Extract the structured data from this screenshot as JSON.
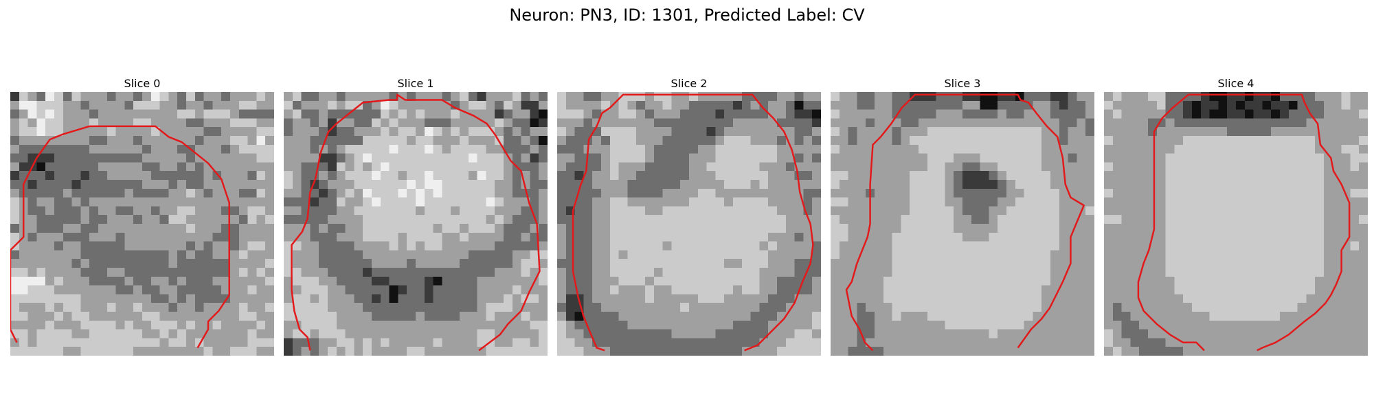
{
  "figure": {
    "title": "Neuron: PN3, ID: 1301, Predicted Label: CV"
  },
  "colors": {
    "contour": "#e31a1c"
  },
  "slices": [
    {
      "title": "Slice 0",
      "pixels": [
        "ADCBEDBDCCCBCCBCEDCBDBCCBCCCDC",
        "CEEDDDCCBCCCCBDDDCCBCCBCCCDDCC",
        "BCEDEDCCCBCCCCCCCCCDDCDDDCBBBB",
        "CDCEDDCCCDCCCCDDCCCCBBCCCDDDCC",
        "CDDEDDCCCCCDCCCCDCCCCCBBCCCCDD",
        "BCCCCCCCCBBCCCBCCCCCCBCCCDDCEC",
        "CBBBBBBBBCCCCCCBCCCBBCCCBCDDDD",
        "BBAAABBBBBBBBBBCCCCCBCCCCCCCDD",
        "CAA@BBBBBBCCCCCBBCCBCBCCCCCCCC",
        "ABBBABBBABBCCCCCBBBBBBCBCCCBDC",
        "BBABBBBABBBBBBBCCCBCBBCCCCCCCC",
        "CBBBBBCBBBBBBCBBBBCCDCBCCCBBDC",
        "DCBCCBBCBCCCCCCCCCCCCCCCCCCCCC",
        "DCBBCBBBCBCCBBCCBCCDDCCCBBCDDC",
        "DCCBBBBBCBBCCCBCCBDDCCCCCCBDCD",
        "BCCBBBCCBBCCCCCCCCCCDCCCBBCCCC",
        "DCBCCCBBBCCCBCCCCCCCCCCBBBCCCC",
        "DCCCCBCCBBBBBCCCCCCCBCBCCBCDDC",
        "BCCCCCCCBBBBBBBBBBCBCBBCCCDCCC",
        "CCCCCCCBCBBBBBBBBBCBBBBBBCCCCD",
        "DDCDCCCCBBBCCBBBBBBBBBBBBCDCDC",
        "EEEECDCCCBBBBCBBCCBCBBBCCCCCCD",
        "EEDDDCCCCCCCBBCBBCCBBBBBCCCDCC",
        "DDDDDDDDCCCCCCCCBBCBCBBBBCCCCC",
        "DCCCDCDDCCCDCCDCCCBCCBCCCCDCCD",
        "DDCCCDCDDCCCCCCDDCCCCCCCCCDDCC",
        "CCCCDCCCDDDDCDCCDDDCDCCDCCCCDC",
        "DDCDDDDCCDDDDDDCCDCDCCCCCCCDCC",
        "CDCDDDDDDDDDDDDDDCDDCDCCCCCDDD",
        "DDDDDDCCDDDDDDCCCCCCCCDCCDDDCC"
      ],
      "contour": [
        [
          0.025,
          0.95
        ],
        [
          0.0,
          0.9
        ],
        [
          0.0,
          0.6
        ],
        [
          0.05,
          0.55
        ],
        [
          0.05,
          0.35
        ],
        [
          0.1,
          0.25
        ],
        [
          0.15,
          0.18
        ],
        [
          0.2,
          0.16
        ],
        [
          0.3,
          0.13
        ],
        [
          0.55,
          0.13
        ],
        [
          0.6,
          0.17
        ],
        [
          0.65,
          0.19
        ],
        [
          0.7,
          0.23
        ],
        [
          0.75,
          0.27
        ],
        [
          0.8,
          0.33
        ],
        [
          0.83,
          0.42
        ],
        [
          0.83,
          0.77
        ],
        [
          0.79,
          0.83
        ],
        [
          0.75,
          0.87
        ],
        [
          0.75,
          0.9
        ],
        [
          0.71,
          0.97
        ]
      ]
    },
    {
      "title": "Slice 1",
      "pixels": [
        "CDBBCCBCCCCCBCBCCCBCDBACCCDBCB",
        "DBCCCDCDDBCEDCCCCCCBCDDCBDCAAC",
        "CDBBCBBBBBBDCDCDCCCDCCCCABCCA@",
        "BCCBCACCBBDCDCCCBBBCCCCCDCBB@A",
        "BCCCBABBCCCDCDDCEDCDCDDDCBCBCC",
        "CCCBBBBBBDDDDDCDDCCCDCCCDBBCB@",
        "CCCBCBCDDDDDEDDDEDCDDDDCCBBBCB",
        "CCCCAABCDEDDDDDDDDDDDEDDDCBCAB",
        "CCBBBADCDCDEDDDDDDDDDDDDDCBBBC",
        "DCBBCBCDDDEDDCDDEDDDDCEDDCBCBC",
        "DCBABCCCDDDDDDEDEEDDDDDDCCBCBB",
        "CCBBABCDCEDDDEDEDEDDDDDDCCBBBC",
        "BBBABBDCCDEDDDDEDDDDDDDEDCCCBC",
        "CCBBBBCCDDDDDDDCDDDCDDDDCCCBBC",
        "BBBBBCCCCDDDDDDDDDDDDDDCDCBBBC",
        "CCCBCBBCCDDDDDDDDCDDCDDDCBBBCB",
        "CCCBBBCCCDDDDCDDDDCCDCCCCBBCBB",
        "DDCCBBBBCCCCDCDCDDCCCCCCBBBBBC",
        "DCCCBBBBBCCCCCCCCCCCCBBBBBCCDD",
        "DCCCBBBBBBCCCCBCCCCCBBBBBBCDDC",
        "DDCCCBBBBABBBBBBBBBBBBBBCCCDCD",
        "CDDDCCBBBBAABBBBA@BBBBCCCCCCCD",
        "CCDDDCCBBBBB@ABBABBBBBCCCCDCCC",
        "CDDCDCCCBBAB@BBBABBBBBCCCDCDDC",
        "DDDDDCCCCBBBBBBBBBBBBBCDDDCCCC",
        "DDDDDDCCCCBBBBBCBBBBCCCDCCCDCC",
        "CCDDDDCCCCCCCCCCCCCCCCCCCCCCDD",
        "CDDCDDDCCCCCCCCCCCCCCCDDCCCCCD",
        "ABBBCCDDCDCDCCCCCDCCCCDDCCDDCD",
        "ABCBCDCDCDCCCCDDCCCCCCCDDDDDDD"
      ],
      "contour": [
        [
          0.1,
          0.98
        ],
        [
          0.09,
          0.93
        ],
        [
          0.06,
          0.9
        ],
        [
          0.04,
          0.83
        ],
        [
          0.03,
          0.75
        ],
        [
          0.03,
          0.58
        ],
        [
          0.07,
          0.53
        ],
        [
          0.09,
          0.48
        ],
        [
          0.1,
          0.38
        ],
        [
          0.12,
          0.33
        ],
        [
          0.14,
          0.23
        ],
        [
          0.17,
          0.15
        ],
        [
          0.2,
          0.12
        ],
        [
          0.25,
          0.08
        ],
        [
          0.3,
          0.04
        ],
        [
          0.4,
          0.03
        ],
        [
          0.43,
          0.03
        ],
        [
          0.43,
          0.01
        ],
        [
          0.46,
          0.03
        ],
        [
          0.6,
          0.03
        ],
        [
          0.65,
          0.06
        ],
        [
          0.72,
          0.09
        ],
        [
          0.77,
          0.12
        ],
        [
          0.8,
          0.16
        ],
        [
          0.83,
          0.21
        ],
        [
          0.86,
          0.26
        ],
        [
          0.9,
          0.3
        ],
        [
          0.93,
          0.42
        ],
        [
          0.96,
          0.5
        ],
        [
          0.97,
          0.68
        ],
        [
          0.93,
          0.76
        ],
        [
          0.9,
          0.83
        ],
        [
          0.85,
          0.88
        ],
        [
          0.82,
          0.92
        ],
        [
          0.74,
          0.98
        ]
      ]
    },
    {
      "title": "Slice 2",
      "pixels": [
        "DCCBBCCDDDCDDCCDCCCCCBBBBCCBCC",
        "DCCCCDCDCBCCDCCBBBBBABCBCCB@BB",
        "DDDCBCCDDCBCCCBBBBABBBBBCCBAA@",
        "CCCBCCCCCCCBBBBBBBBBCCCCCBBBBA",
        "DCBBBDDDDCCCCBBBBABCCCCCCCCBBC",
        "CBBBCBDDDCCCBBBBBBCDDDCCCBCBCB",
        "BBBCCCDDDDCBBBBBCCDDDDDDDCCCCC",
        "CCBBBCDDDDCBBBBCCCDDDDDDDCCBCB",
        "CBBBBCDCCCBBBBBCCDDDDDDCCCBCCC",
        "BBABCCDCCBBBBBBCCCDDDDDDCCCBBC",
        "BBBBCCCCBBBBBBCCCCCDDDCDCCCCCC",
        "BBBBBCCCBBBBCCCCDDCCCCCCCCCCBB",
        "BBBBCCDDCCCCCCCDDDDCDDDDCCCCBC",
        "BABBCCDDDDCCDDDDDDDDDDDDDCCCBC",
        "BBBBCCDDDDDDDDDDDDDDDDDDDDCCCC",
        "CBBBCCDDDDDDDDDDDDDDDDDDDDCCCC",
        "CBBBCCDDDDDDDDDDDDDDDDDDCCCBCC",
        "CBBBCCDDDDDDCDDDDDDDDDDCDCCCCB",
        "CBBBCCDCDDDDDDDDDDDDDDDDCCCCCB",
        "BBBBCCDDDDDDDDDDDDDCCDDDCCCBBB",
        "CBBBCCDDDDDCDDDDDDDDDDDCCCCBBB",
        "CBBBCCCDDDCDDDDDDDDDDDDCCBBBBC",
        "CBBBCCDCCCDCCDDDDDDDCDDCCBBBBC",
        "CAABCCCCCCDCCCCCDDDCCCCCBBBCCC",
        "BAABBCCCCCCCCCDCCCCCCCCBBBCCCC",
        "CA@BBBBCCCCCCCCCCCCCCCBBBCCCCD",
        "DCBBBBBBCCCCCCCCCCCCBBBBCCCCCD",
        "DCCBBBBBBBBBBCCCCCBBBBBBCCCDDC",
        "DDCCBBBBBBBBBBBBBBBBBBBCCCDDDD",
        "DDDCCCBBBBBBBBBBBBBBBCCCCDDDDD"
      ],
      "contour": [
        [
          0.18,
          0.98
        ],
        [
          0.15,
          0.97
        ],
        [
          0.12,
          0.9
        ],
        [
          0.1,
          0.85
        ],
        [
          0.08,
          0.78
        ],
        [
          0.06,
          0.68
        ],
        [
          0.06,
          0.45
        ],
        [
          0.09,
          0.35
        ],
        [
          0.11,
          0.3
        ],
        [
          0.12,
          0.18
        ],
        [
          0.15,
          0.13
        ],
        [
          0.17,
          0.08
        ],
        [
          0.2,
          0.06
        ],
        [
          0.25,
          0.01
        ],
        [
          0.74,
          0.01
        ],
        [
          0.78,
          0.06
        ],
        [
          0.82,
          0.1
        ],
        [
          0.86,
          0.15
        ],
        [
          0.89,
          0.22
        ],
        [
          0.91,
          0.3
        ],
        [
          0.92,
          0.38
        ],
        [
          0.94,
          0.45
        ],
        [
          0.96,
          0.5
        ],
        [
          0.97,
          0.58
        ],
        [
          0.96,
          0.65
        ],
        [
          0.93,
          0.72
        ],
        [
          0.9,
          0.8
        ],
        [
          0.86,
          0.86
        ],
        [
          0.8,
          0.92
        ],
        [
          0.76,
          0.96
        ],
        [
          0.71,
          0.98
        ]
      ]
    },
    {
      "title": "Slice 3",
      "pixels": [
        "DCCBBCCBBAAABBBAA@@AA@BBBAABCC",
        "CCCBBCCBBBBBBBBCC@@BBBBCCBABBC",
        "DCCCCCCBBBBBCCCBBBBCBBCCCBBBBC",
        "CCCCBCCCBBCCCCCCCCCCCCCCCCBBCB",
        "DCBCCCCBCCCDDDDDDDDDDDDDCCBCCB",
        "CCBCCCCBCDDDDDDDDDDDDDDDCCBCCC",
        "DCCCCCCCCCDDDDDDDDDDDDDDCCCCCC",
        "CCCCCCCCCCCDDDCCCDDDDDDDCCCBCC",
        "CCCCCCCCCCCDDCCBBCCDDDDDCCCCCC",
        "DDCCCCCCCDDDDCBAAABCDDDDDCCCCC",
        "DCCCCCCCCDDDDCBAAAABCDDDDCCCCC",
        "CCCCBCCCCDDDDCBBBBBBCCDDDDCCCC",
        "DDCCCCCCCDDDDCCBBBBCCDDDDDCCCC",
        "CCCCCCCCCDDDDDCBBBCCDDDDDDCCCD",
        "DCCCCCCCDDDDDDCCBBCDDDDDDDCCCC",
        "DDCCCCCCDDDDDDCCCCCDDDDDDDCCCC",
        "DDCCCCCDDDDDDDDCCCDDDDDDDDCCCC",
        "DCCCCCCDDDDDDDDDDDDDDDDDDDCCCC",
        "DCCCCCCDDDDDDDDDDDDDDDDDDCCCCC",
        "CCCCCCCDDDDDDDDDDDDDDDDDDCCCCC",
        "CCCCCCCDDDDDDDDDDDDDDDDDDCCCCC",
        "CCCCCCDDDDDDDDDDDDDDDDDDDCCCCC",
        "CCCCCCDDDDDDDDDDDDDDDDDDCCCCCC",
        "CCCCCCDDDDDDDDDDDDDDDDDDCCCCCC",
        "CCCBCCCDDDDDDDDDDDDDDDDDCCCCCC",
        "CCCBBCCDCCCDDDDDDDDDDDDCCCCCCC",
        "CCCBBCCCCCCCCDDDDDDDDDCCCCCCCC",
        "CCCBBCCCCCCCCCCCCCDCCCCCCCCCCC",
        "CCCBCCCCCCCCCCCCCCCCCCCCCCCCCC",
        "CCBBBBCCCCCCCCCCCCCCCCCCCCCCCC"
      ],
      "contour": [
        [
          0.16,
          0.98
        ],
        [
          0.13,
          0.95
        ],
        [
          0.11,
          0.9
        ],
        [
          0.08,
          0.85
        ],
        [
          0.06,
          0.75
        ],
        [
          0.08,
          0.72
        ],
        [
          0.1,
          0.65
        ],
        [
          0.12,
          0.6
        ],
        [
          0.14,
          0.55
        ],
        [
          0.15,
          0.5
        ],
        [
          0.15,
          0.35
        ],
        [
          0.16,
          0.2
        ],
        [
          0.19,
          0.17
        ],
        [
          0.23,
          0.12
        ],
        [
          0.27,
          0.06
        ],
        [
          0.32,
          0.01
        ],
        [
          0.71,
          0.01
        ],
        [
          0.72,
          0.03
        ],
        [
          0.75,
          0.04
        ],
        [
          0.78,
          0.08
        ],
        [
          0.82,
          0.13
        ],
        [
          0.86,
          0.17
        ],
        [
          0.88,
          0.25
        ],
        [
          0.89,
          0.35
        ],
        [
          0.91,
          0.4
        ],
        [
          0.96,
          0.43
        ],
        [
          0.91,
          0.55
        ],
        [
          0.91,
          0.65
        ],
        [
          0.88,
          0.72
        ],
        [
          0.85,
          0.78
        ],
        [
          0.83,
          0.82
        ],
        [
          0.8,
          0.86
        ],
        [
          0.76,
          0.9
        ],
        [
          0.71,
          0.97
        ]
      ]
    },
    {
      "title": "Slice 4",
      "pixels": [
        "CDCCCDDBBBBA@@AA@AA@BBBBCCCDCC",
        "DCCCCCDBBA@AA@A@AA@AA@BBBCCDCC",
        "CDCCCCCBBA@A@@AA@AA@ABBBBCCCCD",
        "CCCCCBBCBBBBBBBBBBBBBBBCCCCCCC",
        "CCCCCBCCCCCCCCBBBBBCCCCCCCCCCC",
        "DCCCCCCCCDDDDDDDDDDDDDDDCCCCCD",
        "CCCCCCCCDDDDDDDDDDDDDDDDCCCDDC",
        "CCCCCCCDDDDDDDDDDDDDDDDDDCCCDD",
        "DCCCCCCDDDDDDDDDDDDDDDDDDCCCDC",
        "CCCCCCCDDDDDDDDDDDDDDDDDDCCCCC",
        "CCCCCCCDDDDDDDDDDDDDDDDDDCCCCC",
        "DCCCCCCDDDDDDDDDDDDDDDDDDCCCDD",
        "CCCCCCCDDDDDDDDDDDDDDDDDDCCCCC",
        "CCCCCCCDDDDDDDDDDDDDDDDDDCCCCC",
        "DDCCCCCDDDDDDDDDDDDDDDDDDCCCCD",
        "CCCCCCCDDDDDDDDDDDDDDDDDDCCCCC",
        "CCCCCCCDDDDDDDDDDDDDDDDDDCCCCC",
        "CCCCCCCDDDDDDDDDDDDDDDDDDCCCDC",
        "CCCCCCCDDDDDDDDDDDDDDDDDDCCCCC",
        "CCCCCCCDDDDDDDDDDDDDDDDDDCCCCC",
        "CCCCCCCDDDDDDDDDDDDDDDDDDCCCCC",
        "CCCCCCCCDDDDDDDDDDDDDDDDCCCCCC",
        "CCCCCCCCDDDDDDDDDDDDDDDDCCCCCC",
        "CCCCCCCCCDDDDDDDDDDDDDDCCCCCCC",
        "CBCCCCCCCCDDDDDDDDDDDDCCCCCCCC",
        "CBBCCCCCCCCCDDDDDDDDCCCCCCCCCC",
        "CCBBCCCCCCCCCCCCCCCCCCCCCCCCCC",
        "DCBBBCCCCCCCCCCCCCCCCCCCCCCCCC",
        "DCCBBBBCCCCCCCCCCCCCCCCCCCCCCC",
        "CDCCBBBBBCCCCCCCCCCCCCCCCCCCCC"
      ],
      "contour": [
        [
          0.38,
          0.98
        ],
        [
          0.35,
          0.95
        ],
        [
          0.3,
          0.95
        ],
        [
          0.25,
          0.92
        ],
        [
          0.2,
          0.88
        ],
        [
          0.15,
          0.83
        ],
        [
          0.13,
          0.78
        ],
        [
          0.13,
          0.72
        ],
        [
          0.15,
          0.65
        ],
        [
          0.17,
          0.6
        ],
        [
          0.19,
          0.52
        ],
        [
          0.19,
          0.15
        ],
        [
          0.22,
          0.1
        ],
        [
          0.26,
          0.06
        ],
        [
          0.32,
          0.01
        ],
        [
          0.75,
          0.01
        ],
        [
          0.76,
          0.04
        ],
        [
          0.78,
          0.08
        ],
        [
          0.81,
          0.12
        ],
        [
          0.82,
          0.2
        ],
        [
          0.86,
          0.25
        ],
        [
          0.87,
          0.3
        ],
        [
          0.9,
          0.35
        ],
        [
          0.93,
          0.42
        ],
        [
          0.93,
          0.55
        ],
        [
          0.9,
          0.6
        ],
        [
          0.9,
          0.68
        ],
        [
          0.88,
          0.73
        ],
        [
          0.86,
          0.77
        ],
        [
          0.84,
          0.8
        ],
        [
          0.8,
          0.84
        ],
        [
          0.76,
          0.87
        ],
        [
          0.7,
          0.92
        ],
        [
          0.65,
          0.95
        ],
        [
          0.6,
          0.97
        ],
        [
          0.58,
          0.98
        ]
      ]
    }
  ]
}
